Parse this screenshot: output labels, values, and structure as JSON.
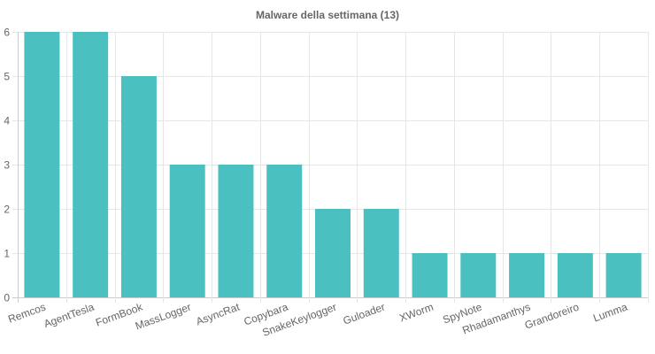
{
  "chart_data": {
    "type": "bar",
    "title": "Malware della settimana (13)",
    "categories": [
      "Remcos",
      "AgentTesla",
      "FormBook",
      "MassLogger",
      "AsyncRat",
      "Copybara",
      "SnakeKeylogger",
      "Guloader",
      "XWorm",
      "SpyNote",
      "Rhadamanthys",
      "Grandoreiro",
      "Lumma"
    ],
    "values": [
      6,
      6,
      5,
      3,
      3,
      3,
      2,
      2,
      1,
      1,
      1,
      1,
      1
    ],
    "xlabel": "",
    "ylabel": "",
    "ylim": [
      0,
      6
    ],
    "yticks": [
      0,
      1,
      2,
      3,
      4,
      5,
      6
    ],
    "grid": true,
    "legend": "none",
    "colors": {
      "bar": "#4bc0c0",
      "grid": "#e6e6e6",
      "text": "#666666"
    }
  }
}
